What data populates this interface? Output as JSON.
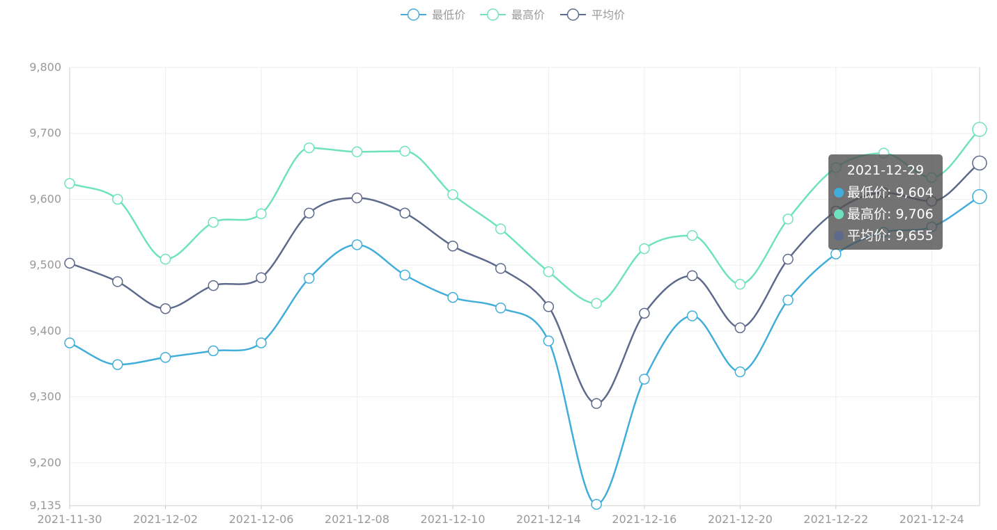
{
  "chart_data": {
    "type": "line",
    "smooth": true,
    "title": "",
    "xlabel": "",
    "ylabel": "",
    "x": [
      "2021-11-30",
      "2021-12-01",
      "2021-12-02",
      "2021-12-03",
      "2021-12-06",
      "2021-12-07",
      "2021-12-08",
      "2021-12-09",
      "2021-12-10",
      "2021-12-13",
      "2021-12-14",
      "2021-12-15",
      "2021-12-16",
      "2021-12-17",
      "2021-12-20",
      "2021-12-21",
      "2021-12-22",
      "2021-12-23",
      "2021-12-24",
      "2021-12-29"
    ],
    "x_tick_labels": [
      "2021-11-30",
      "2021-12-02",
      "2021-12-06",
      "2021-12-08",
      "2021-12-10",
      "2021-12-14",
      "2021-12-16",
      "2021-12-20",
      "2021-12-22",
      "2021-12-24"
    ],
    "y_tick_labels": [
      "9,135",
      "9,200",
      "9,300",
      "9,400",
      "9,500",
      "9,600",
      "9,700",
      "9,800"
    ],
    "ylim": [
      9135,
      9800
    ],
    "y_ticks": [
      9135,
      9200,
      9300,
      9400,
      9500,
      9600,
      9700,
      9800
    ],
    "grid": true,
    "legend_position": "top-center",
    "series": [
      {
        "name": "最低价",
        "color": "#41ADDA",
        "values": [
          9382,
          9349,
          9360,
          9370,
          9382,
          9480,
          9531,
          9485,
          9451,
          9435,
          9385,
          9137,
          9327,
          9423,
          9338,
          9447,
          9517,
          9550,
          9558,
          9604
        ]
      },
      {
        "name": "最高价",
        "color": "#6EE2BE",
        "values": [
          9624,
          9600,
          9509,
          9565,
          9578,
          9678,
          9672,
          9673,
          9607,
          9555,
          9490,
          9442,
          9525,
          9545,
          9471,
          9570,
          9648,
          9670,
          9633,
          9706
        ]
      },
      {
        "name": "平均价",
        "color": "#5E6A8C",
        "values": [
          9503,
          9475,
          9434,
          9469,
          9481,
          9579,
          9602,
          9579,
          9529,
          9495,
          9437,
          9290,
          9427,
          9484,
          9405,
          9509,
          9582,
          9610,
          9597,
          9655
        ]
      }
    ]
  },
  "tooltip": {
    "date": "2021-12-29",
    "rows": [
      {
        "text": "最低价: 9,604",
        "color": "#41ADDA"
      },
      {
        "text": "最高价: 9,706",
        "color": "#6EE2BE"
      },
      {
        "text": "平均价: 9,655",
        "color": "#5E6A8C"
      }
    ]
  }
}
